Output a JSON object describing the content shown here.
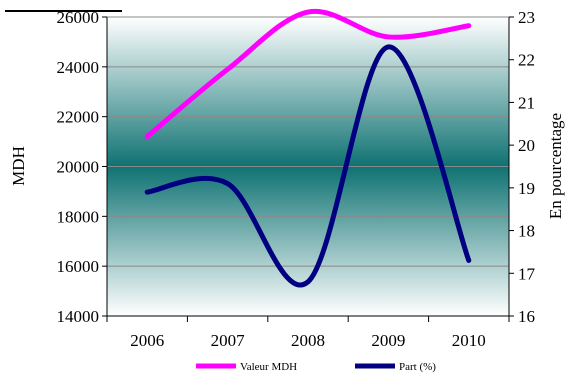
{
  "chart_data": {
    "type": "line",
    "categories": [
      "2006",
      "2007",
      "2008",
      "2009",
      "2010"
    ],
    "ylabel": "MDH",
    "y2label": "En pourcentage",
    "ylim": [
      14000,
      26000
    ],
    "y2lim": [
      16,
      23
    ],
    "y_ticks": [
      "14000",
      "16000",
      "18000",
      "20000",
      "22000",
      "24000",
      "26000"
    ],
    "y2_ticks": [
      "16",
      "17",
      "18",
      "19",
      "20",
      "21",
      "22",
      "23"
    ],
    "grid": true,
    "legend_position": "bottom",
    "series": [
      {
        "name": "Valeur MDH",
        "axis": "left",
        "color": "#ff00ff",
        "values": [
          21200,
          23900,
          26200,
          25200,
          25650
        ]
      },
      {
        "name": "Part (%)",
        "axis": "right",
        "color": "#000080",
        "values": [
          18.9,
          19.1,
          16.8,
          22.3,
          17.3
        ]
      }
    ]
  }
}
